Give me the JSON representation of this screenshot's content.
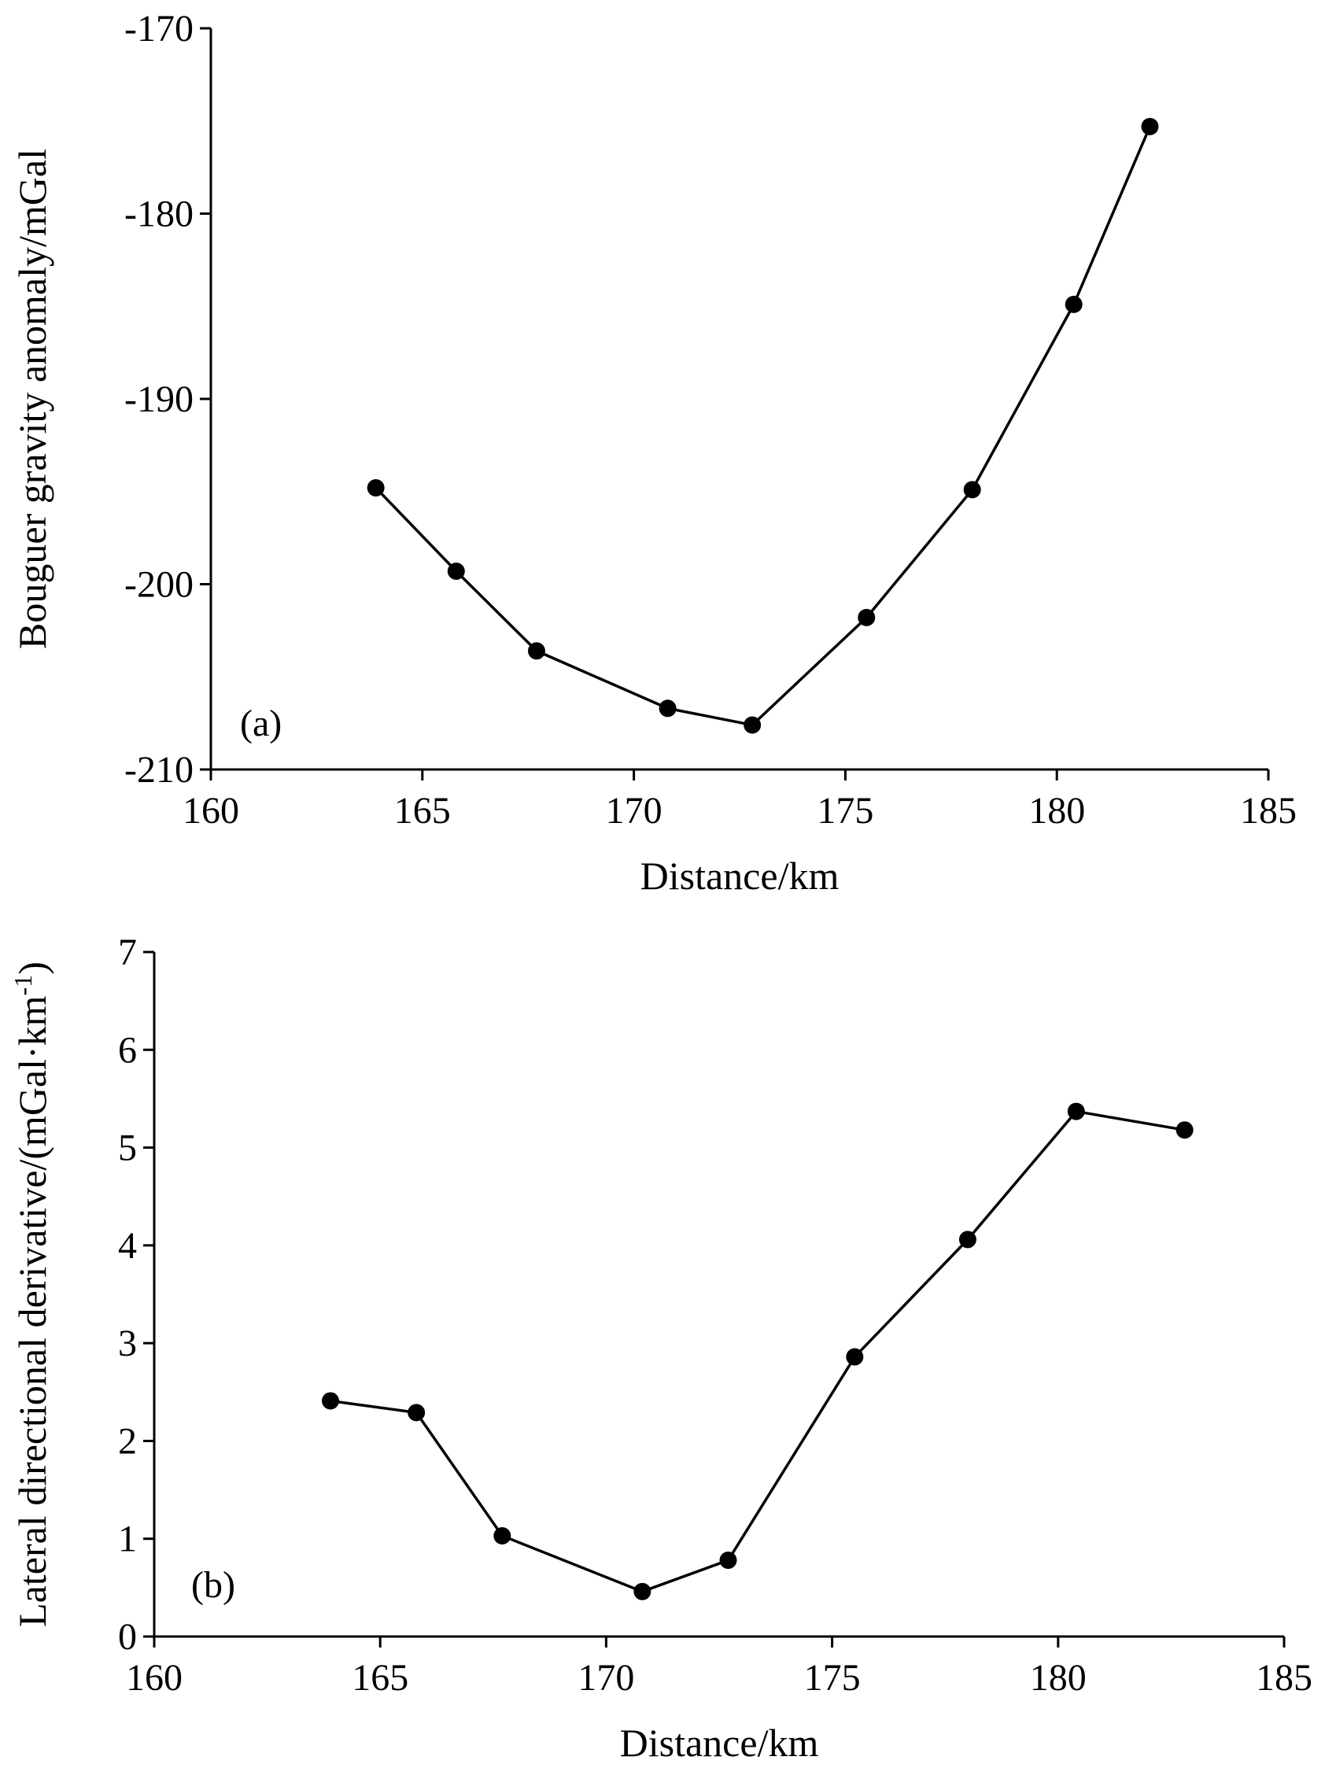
{
  "chart_data": [
    {
      "type": "line",
      "panel_label": "(a)",
      "xlabel": "Distance/km",
      "ylabel": "Bouguer gravity anomaly/mGal",
      "xlim": [
        160,
        185
      ],
      "ylim": [
        -210,
        -170
      ],
      "xticks": [
        160,
        165,
        170,
        175,
        180,
        185
      ],
      "yticks": [
        -170,
        -180,
        -190,
        -200,
        -210
      ],
      "xtick_labels": [
        "160",
        "165",
        "170",
        "175",
        "180",
        "185"
      ],
      "ytick_labels": [
        "-170",
        "-180",
        "-190",
        "-200",
        "-210"
      ],
      "x": [
        163.9,
        165.8,
        167.7,
        170.8,
        172.8,
        175.5,
        178.0,
        180.4,
        182.2
      ],
      "y": [
        -194.8,
        -199.3,
        -203.6,
        -206.7,
        -207.6,
        -201.8,
        -194.9,
        -184.9,
        -175.3
      ]
    },
    {
      "type": "line",
      "panel_label": "(b)",
      "xlabel": "Distance/km",
      "ylabel": "Lateral directional derivative/(mGal·km",
      "ylabel_sup": "-1",
      "ylabel_close": ")",
      "xlim": [
        160,
        185
      ],
      "ylim": [
        0,
        7
      ],
      "xticks": [
        160,
        165,
        170,
        175,
        180,
        185
      ],
      "yticks": [
        0,
        1,
        2,
        3,
        4,
        5,
        6,
        7
      ],
      "xtick_labels": [
        "160",
        "165",
        "170",
        "175",
        "180",
        "185"
      ],
      "ytick_labels": [
        "0",
        "1",
        "2",
        "3",
        "4",
        "5",
        "6",
        "7"
      ],
      "x": [
        163.9,
        165.8,
        167.7,
        170.8,
        172.7,
        175.5,
        178.0,
        180.4,
        182.8
      ],
      "y": [
        2.41,
        2.29,
        1.03,
        0.46,
        0.78,
        2.86,
        4.06,
        5.37,
        5.18
      ]
    }
  ]
}
